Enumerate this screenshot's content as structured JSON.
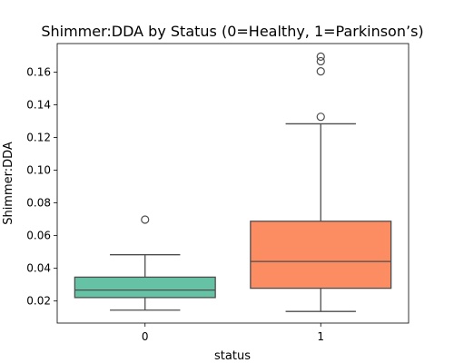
{
  "chart_data": {
    "type": "box",
    "title": "Shimmer:DDA by Status (0=Healthy, 1=Parkinson’s)",
    "xlabel": "status",
    "ylabel": "Shimmer:DDA",
    "categories": [
      "0",
      "1"
    ],
    "ylim": [
      0.0065,
      0.1775
    ],
    "yticks": [
      0.02,
      0.04,
      0.06,
      0.08,
      0.1,
      0.12,
      0.14,
      0.16
    ],
    "ytick_labels": [
      "0.02",
      "0.04",
      "0.06",
      "0.08",
      "0.10",
      "0.12",
      "0.14",
      "0.16"
    ],
    "grid": false,
    "boxes": [
      {
        "category": "0",
        "whisker_low": 0.0144,
        "q1": 0.0221,
        "median": 0.0267,
        "q3": 0.0346,
        "whisker_high": 0.0483,
        "outliers": [
          0.0698
        ],
        "color": "#66c2a5"
      },
      {
        "category": "1",
        "whisker_low": 0.0136,
        "q1": 0.0278,
        "median": 0.0442,
        "q3": 0.0688,
        "whisker_high": 0.1284,
        "outliers": [
          0.1327,
          0.1605,
          0.1667,
          0.1695
        ],
        "color": "#fc8d62"
      }
    ]
  }
}
